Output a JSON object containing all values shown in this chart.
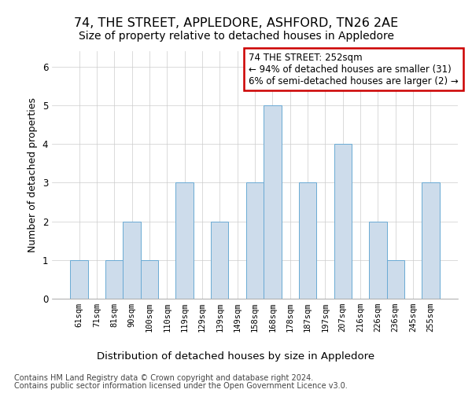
{
  "title": "74, THE STREET, APPLEDORE, ASHFORD, TN26 2AE",
  "subtitle": "Size of property relative to detached houses in Appledore",
  "xlabel": "Distribution of detached houses by size in Appledore",
  "ylabel": "Number of detached properties",
  "footnote1": "Contains HM Land Registry data © Crown copyright and database right 2024.",
  "footnote2": "Contains public sector information licensed under the Open Government Licence v3.0.",
  "bins": [
    "61sqm",
    "71sqm",
    "81sqm",
    "90sqm",
    "100sqm",
    "110sqm",
    "119sqm",
    "129sqm",
    "139sqm",
    "149sqm",
    "158sqm",
    "168sqm",
    "178sqm",
    "187sqm",
    "197sqm",
    "207sqm",
    "216sqm",
    "226sqm",
    "236sqm",
    "245sqm",
    "255sqm"
  ],
  "values": [
    1,
    0,
    1,
    2,
    1,
    0,
    3,
    0,
    2,
    0,
    3,
    5,
    0,
    3,
    0,
    4,
    0,
    2,
    1,
    0,
    3
  ],
  "bar_color": "#cddceb",
  "bar_edge_color": "#6aaad4",
  "annotation_line1": "74 THE STREET: 252sqm",
  "annotation_line2": "← 94% of detached houses are smaller (31)",
  "annotation_line3": "6% of semi-detached houses are larger (2) →",
  "annotation_box_edge_color": "#cc0000",
  "ylim": [
    0,
    6.4
  ],
  "yticks": [
    0,
    1,
    2,
    3,
    4,
    5,
    6
  ],
  "grid_color": "#cccccc",
  "background_color": "#ffffff",
  "title_fontsize": 11.5,
  "subtitle_fontsize": 10,
  "ylabel_fontsize": 9,
  "xlabel_fontsize": 9.5,
  "tick_fontsize": 7.5,
  "annotation_fontsize": 8.5,
  "footnote_fontsize": 7
}
